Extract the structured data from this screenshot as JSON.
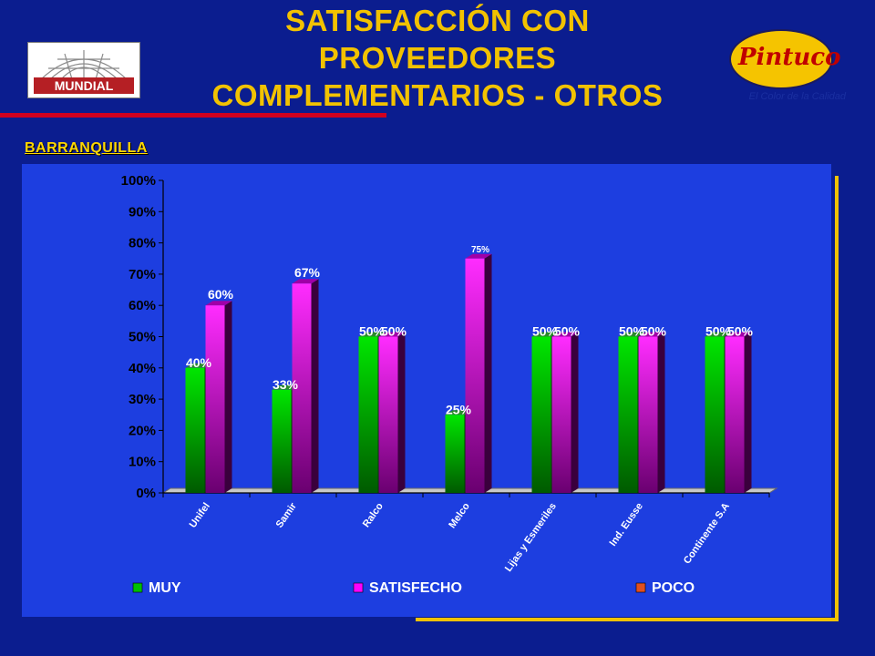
{
  "title_lines": [
    "SATISFACCIÓN CON",
    "PROVEEDORES",
    "COMPLEMENTARIOS - OTROS"
  ],
  "logos": {
    "left_text": "MUNDIAL",
    "right_text": "Pintuco",
    "right_tagline": "El Color de la Calidad"
  },
  "subtitle": "BARRANQUILLA",
  "colors": {
    "background": "#0b1d8f",
    "panel": "#1d3ee0",
    "title": "#f2c200",
    "muy": "#00c000",
    "satisfecho": "#ff00ff",
    "poco": "#e05020"
  },
  "chart_data": {
    "type": "bar",
    "categories": [
      "Unifel",
      "Samir",
      "Ralco",
      "Melco",
      "Lijas y Esmeriles",
      "Ind. Eusse",
      "Continente S.A"
    ],
    "ylim": [
      0,
      100
    ],
    "y_ticks": [
      "0%",
      "10%",
      "20%",
      "30%",
      "40%",
      "50%",
      "60%",
      "70%",
      "80%",
      "90%",
      "100%"
    ],
    "series": [
      {
        "name": "MUY",
        "values": [
          40,
          33,
          50,
          25,
          50,
          50,
          50
        ],
        "labels": [
          "40%",
          "33%",
          "50%",
          "25%",
          "50%",
          "50%",
          "50%"
        ]
      },
      {
        "name": "SATISFECHO",
        "values": [
          60,
          67,
          50,
          75,
          50,
          50,
          50
        ],
        "labels": [
          "60%",
          "67%",
          "50%",
          "75%",
          "50%",
          "50%",
          "50%"
        ]
      },
      {
        "name": "POCO",
        "values": [
          0,
          0,
          0,
          0,
          0,
          0,
          0
        ],
        "labels": []
      }
    ],
    "legend_position": "bottom",
    "grid": false
  }
}
